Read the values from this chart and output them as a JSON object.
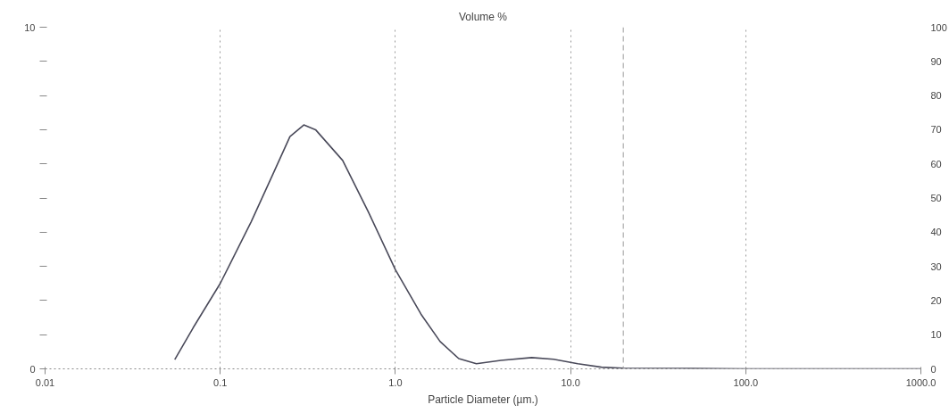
{
  "chart_data": {
    "type": "line",
    "title": "Volume %",
    "xlabel": "Particle Diameter (µm.)",
    "log": "x",
    "grid": "x",
    "marker": "none",
    "line_style": "solid",
    "xlim": [
      0.01,
      1000
    ],
    "xticks": [
      {
        "value": 0.01,
        "label": "0.01"
      },
      {
        "value": 0.1,
        "label": "0.1"
      },
      {
        "value": 1,
        "label": "1.0"
      },
      {
        "value": 10,
        "label": "10.0"
      },
      {
        "value": 100,
        "label": "100.0"
      },
      {
        "value": 1000,
        "label": "1000.0"
      }
    ],
    "ylim": [
      0,
      10
    ],
    "yticks": [
      0,
      {
        "value": 1,
        "label": null
      },
      {
        "value": 2,
        "label": null
      },
      {
        "value": 3,
        "label": null
      },
      {
        "value": 4,
        "label": null
      },
      {
        "value": 5,
        "label": null
      },
      {
        "value": 6,
        "label": null
      },
      {
        "value": 7,
        "label": null
      },
      {
        "value": 8,
        "label": null
      },
      {
        "value": 9,
        "label": null
      },
      10
    ],
    "y2lim": [
      0,
      100
    ],
    "y2ticks": [
      0,
      10,
      20,
      30,
      40,
      50,
      60,
      70,
      80,
      90,
      100
    ],
    "ref_lines": [
      {
        "axis": "x",
        "value": 20,
        "line_style": "dashed",
        "color": "#999999"
      }
    ],
    "series": [
      {
        "color": "#4a4a5a",
        "x": [
          0.055,
          0.07,
          0.1,
          0.15,
          0.2,
          0.25,
          0.3,
          0.35,
          0.5,
          0.7,
          1.0,
          1.4,
          1.8,
          2.3,
          2.9,
          4,
          6,
          8,
          11,
          15,
          20,
          50,
          100,
          1000
        ],
        "values": [
          0.27,
          1.2,
          2.5,
          4.3,
          5.7,
          6.8,
          7.14,
          7.0,
          6.1,
          4.6,
          2.9,
          1.6,
          0.8,
          0.3,
          0.15,
          0.25,
          0.33,
          0.28,
          0.15,
          0.05,
          0.02,
          0.01,
          0,
          0
        ]
      }
    ]
  }
}
